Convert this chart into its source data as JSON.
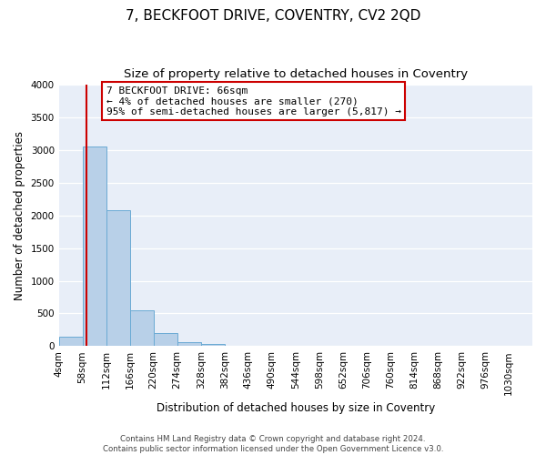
{
  "title": "7, BECKFOOT DRIVE, COVENTRY, CV2 2QD",
  "subtitle": "Size of property relative to detached houses in Coventry",
  "xlabel": "Distribution of detached houses by size in Coventry",
  "ylabel": "Number of detached properties",
  "bin_edges": [
    4,
    58,
    112,
    166,
    220,
    274,
    328,
    382,
    436,
    490,
    544,
    598,
    652,
    706,
    760,
    814,
    868,
    922,
    976,
    1030,
    1084
  ],
  "bin_counts": [
    150,
    3050,
    2080,
    550,
    205,
    65,
    35,
    0,
    0,
    0,
    0,
    0,
    0,
    0,
    0,
    0,
    0,
    0,
    0,
    0
  ],
  "bar_color": "#b8d0e8",
  "bar_edge_color": "#6aaad4",
  "property_line_x": 66,
  "property_line_color": "#cc0000",
  "annotation_title": "7 BECKFOOT DRIVE: 66sqm",
  "annotation_line1": "← 4% of detached houses are smaller (270)",
  "annotation_line2": "95% of semi-detached houses are larger (5,817) →",
  "annotation_box_facecolor": "#ffffff",
  "annotation_box_edgecolor": "#cc0000",
  "ylim": [
    0,
    4000
  ],
  "yticks": [
    0,
    500,
    1000,
    1500,
    2000,
    2500,
    3000,
    3500,
    4000
  ],
  "background_color": "#ffffff",
  "plot_bg_color": "#e8eef8",
  "grid_color": "#ffffff",
  "footer_line1": "Contains HM Land Registry data © Crown copyright and database right 2024.",
  "footer_line2": "Contains public sector information licensed under the Open Government Licence v3.0.",
  "title_fontsize": 11,
  "subtitle_fontsize": 9.5,
  "axis_label_fontsize": 8.5,
  "tick_fontsize": 7.5,
  "annotation_fontsize": 8
}
